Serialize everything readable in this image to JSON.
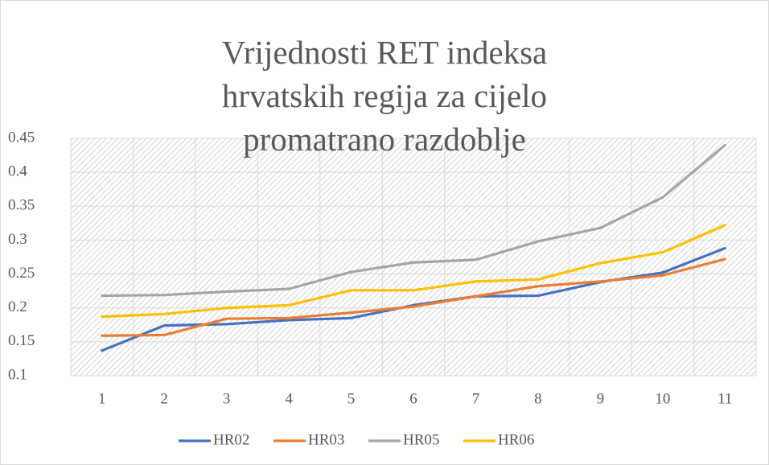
{
  "chart_data": {
    "type": "line",
    "title": "Vrijednosti RET indeksa hrvatskih regija za cijelo promatrano razdoblje",
    "categories": [
      1,
      2,
      3,
      4,
      5,
      6,
      7,
      8,
      9,
      10,
      11
    ],
    "series": [
      {
        "name": "HR02",
        "color": "#4472c4",
        "values": [
          0.137,
          0.174,
          0.176,
          0.182,
          0.185,
          0.204,
          0.217,
          0.218,
          0.238,
          0.252,
          0.288
        ]
      },
      {
        "name": "HR03",
        "color": "#ed7d31",
        "values": [
          0.159,
          0.16,
          0.184,
          0.185,
          0.193,
          0.202,
          0.217,
          0.232,
          0.239,
          0.248,
          0.272
        ]
      },
      {
        "name": "HR05",
        "color": "#a5a5a5",
        "values": [
          0.218,
          0.219,
          0.224,
          0.228,
          0.253,
          0.267,
          0.271,
          0.298,
          0.318,
          0.363,
          0.44
        ]
      },
      {
        "name": "HR06",
        "color": "#ffc000",
        "values": [
          0.187,
          0.191,
          0.2,
          0.204,
          0.226,
          0.226,
          0.239,
          0.242,
          0.266,
          0.282,
          0.322
        ]
      }
    ],
    "ylim": [
      0.1,
      0.45
    ],
    "yticks": [
      0.1,
      0.15,
      0.2,
      0.25,
      0.3,
      0.35,
      0.4,
      0.45
    ],
    "grid": true,
    "legend": "bottom"
  }
}
